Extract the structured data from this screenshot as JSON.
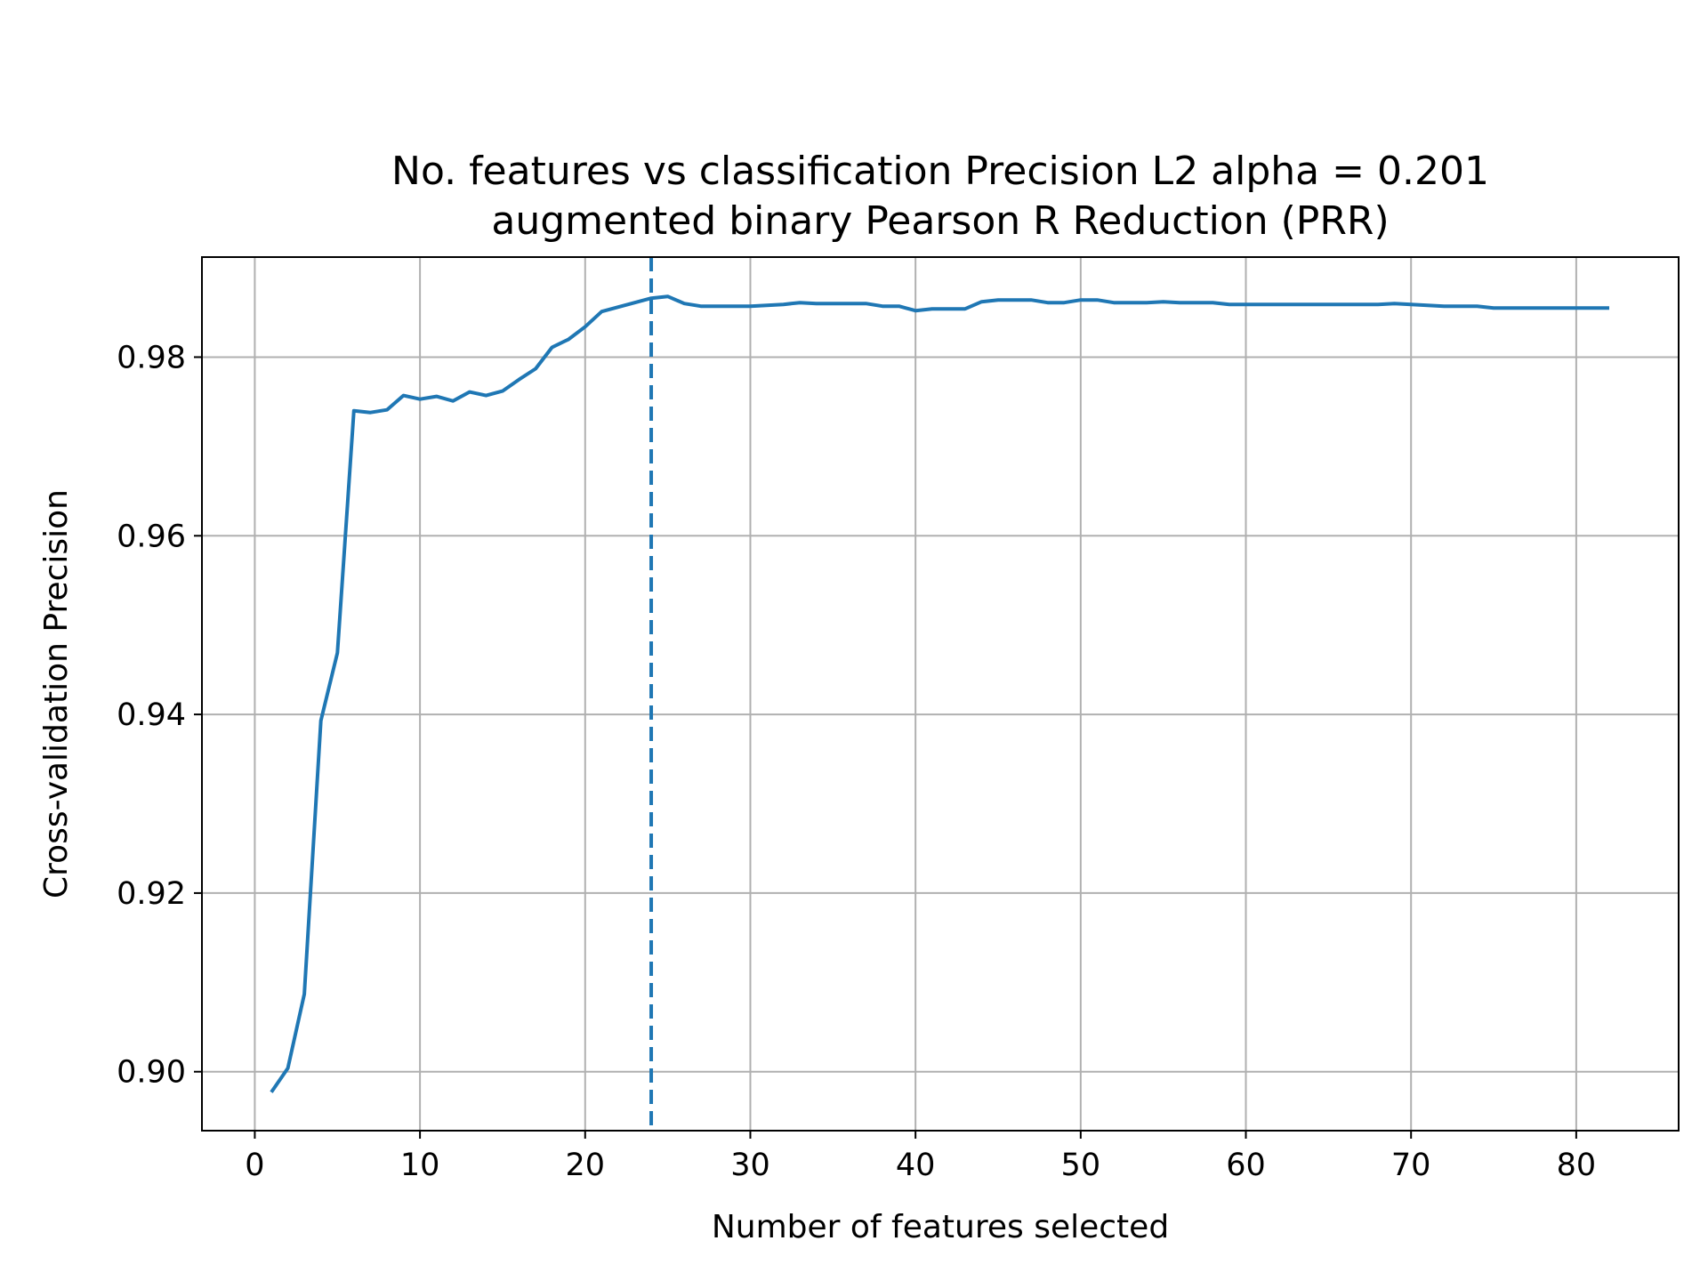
{
  "chart_data": {
    "type": "line",
    "title_lines": [
      "No. features vs classification Precision L2 alpha = 0.201",
      "augmented binary Pearson R Reduction (PRR)"
    ],
    "xlabel": "Number of features selected",
    "ylabel": "Cross-validation Precision",
    "xlim": [
      -3.2,
      86.2
    ],
    "ylim": [
      0.8934,
      0.9912
    ],
    "xticks": [
      0,
      10,
      20,
      30,
      40,
      50,
      60,
      70,
      80
    ],
    "xtick_labels": [
      "0",
      "10",
      "20",
      "30",
      "40",
      "50",
      "60",
      "70",
      "80"
    ],
    "yticks": [
      0.9,
      0.92,
      0.94,
      0.96,
      0.98
    ],
    "ytick_labels": [
      "0.90",
      "0.92",
      "0.94",
      "0.96",
      "0.98"
    ],
    "grid": true,
    "series": [
      {
        "x": [
          1,
          2,
          3,
          4,
          5,
          6,
          7,
          8,
          9,
          10,
          11,
          12,
          13,
          14,
          15,
          16,
          17,
          18,
          19,
          20,
          21,
          22,
          23,
          24,
          25,
          26,
          27,
          28,
          29,
          30,
          31,
          32,
          33,
          34,
          35,
          36,
          37,
          38,
          39,
          40,
          41,
          42,
          43,
          44,
          45,
          46,
          47,
          48,
          49,
          50,
          51,
          52,
          53,
          54,
          55,
          56,
          57,
          58,
          59,
          60,
          61,
          62,
          63,
          64,
          65,
          66,
          67,
          68,
          69,
          70,
          71,
          72,
          73,
          74,
          75,
          76,
          77,
          78,
          79,
          80,
          81,
          82
        ],
        "y": [
          0.8977,
          0.9004,
          0.9087,
          0.9393,
          0.9469,
          0.974,
          0.9738,
          0.9741,
          0.9757,
          0.9753,
          0.9756,
          0.9751,
          0.9761,
          0.9757,
          0.9762,
          0.9775,
          0.9787,
          0.9811,
          0.982,
          0.9834,
          0.9851,
          0.9856,
          0.9861,
          0.9866,
          0.9868,
          0.986,
          0.9857,
          0.9857,
          0.9857,
          0.9857,
          0.9858,
          0.9859,
          0.9861,
          0.986,
          0.986,
          0.986,
          0.986,
          0.9857,
          0.9857,
          0.9852,
          0.9854,
          0.9854,
          0.9854,
          0.9862,
          0.9864,
          0.9864,
          0.9864,
          0.9861,
          0.9861,
          0.9864,
          0.9864,
          0.9861,
          0.9861,
          0.9861,
          0.9862,
          0.9861,
          0.9861,
          0.9861,
          0.9859,
          0.9859,
          0.9859,
          0.9859,
          0.9859,
          0.9859,
          0.9859,
          0.9859,
          0.9859,
          0.9859,
          0.986,
          0.9859,
          0.9858,
          0.9857,
          0.9857,
          0.9857,
          0.9855,
          0.9855,
          0.9855,
          0.9855,
          0.9855,
          0.9855,
          0.9855,
          0.9855
        ]
      }
    ],
    "vline": {
      "x": 24,
      "style": "dashed"
    },
    "colors": {
      "line": "#1f77b4",
      "grid": "#b0b0b0"
    }
  }
}
